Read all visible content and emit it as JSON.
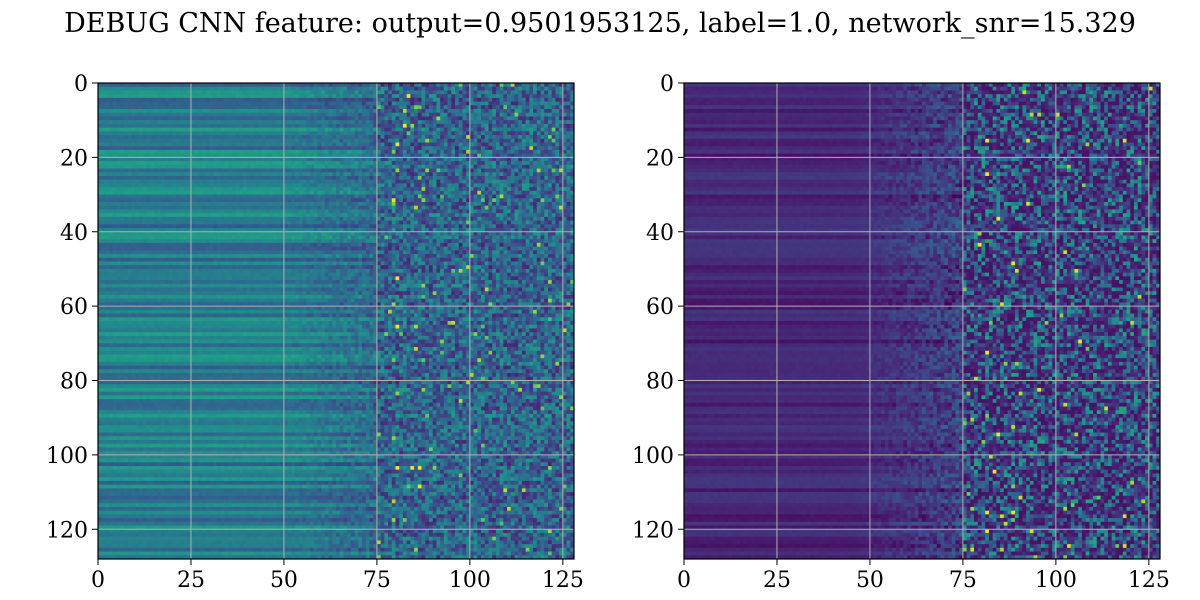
{
  "figure": {
    "title": "DEBUG CNN feature: output=0.9501953125, label=1.0, network_snr=15.329"
  },
  "chart_data": [
    {
      "type": "heatmap",
      "title": "",
      "xlabel": "",
      "ylabel": "",
      "xlim": [
        0,
        128
      ],
      "ylim": [
        128,
        0
      ],
      "xticks": [
        0,
        25,
        50,
        75,
        100,
        125
      ],
      "yticks": [
        0,
        20,
        40,
        60,
        80,
        100,
        120
      ],
      "grid": true,
      "colormap": "viridis",
      "shape": [
        128,
        128
      ],
      "description_of_pattern": "left columns smooth horizontal bands, right columns noisy",
      "bright_spots": [
        [
          83,
          3
        ],
        [
          80,
          65
        ],
        [
          84,
          103
        ],
        [
          80,
          103
        ],
        [
          86,
          103
        ],
        [
          86,
          108
        ],
        [
          82,
          11
        ],
        [
          80,
          16
        ],
        [
          79,
          31
        ],
        [
          80,
          52
        ]
      ]
    },
    {
      "type": "heatmap",
      "title": "",
      "xlabel": "",
      "ylabel": "",
      "xlim": [
        0,
        128
      ],
      "ylim": [
        128,
        0
      ],
      "xticks": [
        0,
        25,
        50,
        75,
        100,
        125
      ],
      "yticks": [
        0,
        20,
        40,
        60,
        80,
        100,
        120
      ],
      "grid": true,
      "colormap": "viridis",
      "shape": [
        128,
        128
      ],
      "description_of_pattern": "dark purple left region, sparse bright noisy right region",
      "bright_spots": [
        [
          81,
          15
        ],
        [
          92,
          15
        ],
        [
          81,
          24
        ],
        [
          84,
          36
        ],
        [
          79,
          43
        ],
        [
          88,
          48
        ],
        [
          106,
          69
        ],
        [
          81,
          72
        ],
        [
          95,
          82
        ],
        [
          84,
          94
        ],
        [
          83,
          104
        ],
        [
          81,
          115
        ],
        [
          88,
          115
        ],
        [
          81,
          120
        ]
      ]
    }
  ]
}
